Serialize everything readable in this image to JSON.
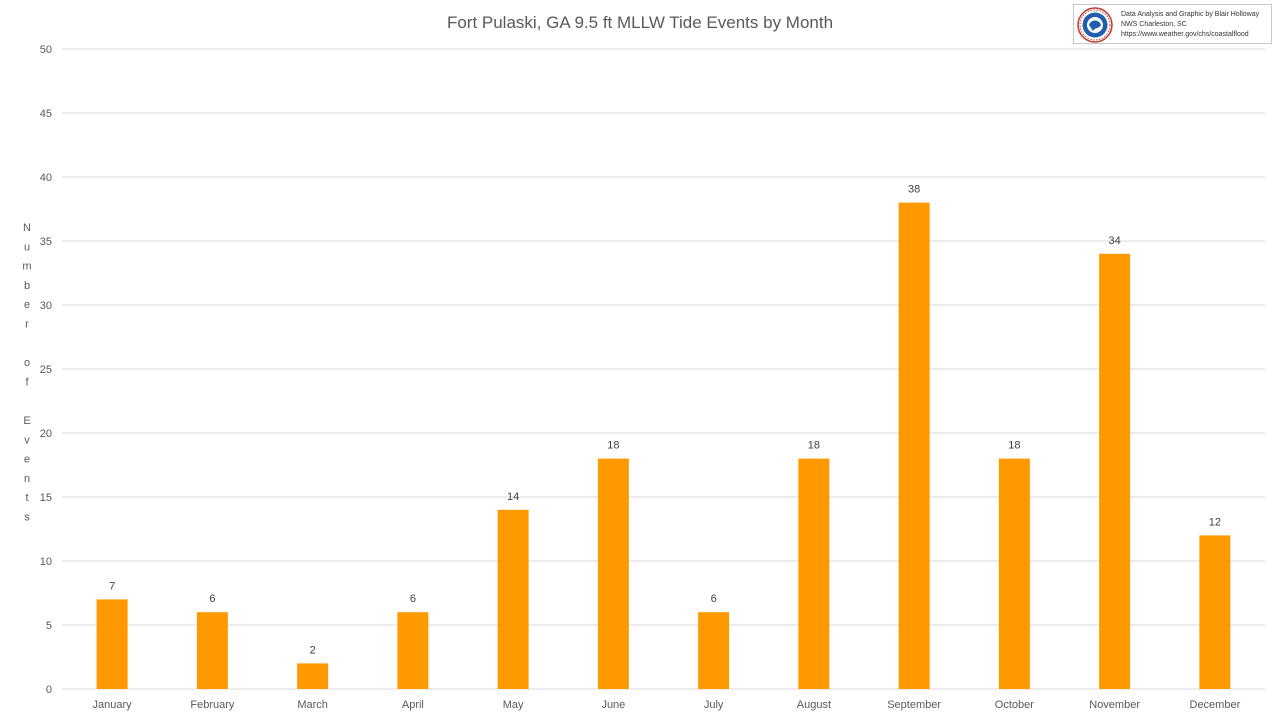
{
  "chart_data": {
    "type": "bar",
    "title": "Fort Pulaski, GA 9.5 ft MLLW Tide Events by Month",
    "ylabel": "Number of Events",
    "xlabel": "",
    "categories": [
      "January",
      "February",
      "March",
      "April",
      "May",
      "June",
      "July",
      "August",
      "September",
      "October",
      "November",
      "December"
    ],
    "values": [
      7,
      6,
      2,
      6,
      14,
      18,
      6,
      18,
      38,
      18,
      34,
      12
    ],
    "ylim": [
      0,
      50
    ],
    "yticks": [
      0,
      5,
      10,
      15,
      20,
      25,
      30,
      35,
      40,
      45,
      50
    ],
    "grid": true,
    "legend": "none",
    "bar_color": "#FF9900",
    "grid_color": "#d9d9d9",
    "data_labels": true
  },
  "credit": {
    "line1": "Data Analysis and Graphic by Blair Holloway",
    "line2": "NWS Charleston, SC",
    "line3": "https://www.weather.gov/chs/coastalflood",
    "logo_icon": "nws-logo-icon",
    "logo_color": "#1f5fae"
  }
}
